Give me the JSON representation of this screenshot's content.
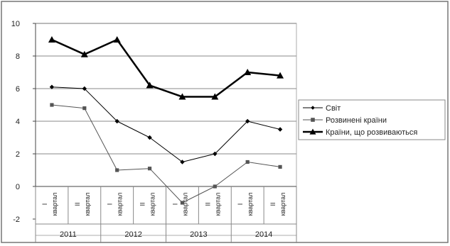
{
  "chart_data": {
    "type": "line",
    "title": "",
    "xlabel": "",
    "ylabel": "",
    "ylim": [
      -3,
      10
    ],
    "yticks": [
      -2,
      0,
      2,
      4,
      6,
      8,
      10
    ],
    "grid": "horizontal",
    "legend_position": "right",
    "x_categories": [
      {
        "roman": "I",
        "quarter": "квартал"
      },
      {
        "roman": "II",
        "quarter": "квартал"
      },
      {
        "roman": "I",
        "quarter": "квартал"
      },
      {
        "roman": "II",
        "quarter": "квартал"
      },
      {
        "roman": "I",
        "quarter": "квартал"
      },
      {
        "roman": "II",
        "quarter": "квартал"
      },
      {
        "roman": "I",
        "quarter": "квартал"
      },
      {
        "roman": "II",
        "quarter": "квартал"
      }
    ],
    "years": [
      "2011",
      "2012",
      "2013",
      "2014"
    ],
    "series": [
      {
        "name": "Світ",
        "marker": "diamond",
        "color": "#000000",
        "width": 1,
        "values": [
          6.1,
          6.0,
          4.0,
          3.0,
          1.5,
          2.0,
          4.0,
          3.5
        ]
      },
      {
        "name": "Розвинені країни",
        "marker": "square",
        "color": "#555555",
        "width": 1,
        "values": [
          5.0,
          4.8,
          1.0,
          1.1,
          -1.0,
          0.0,
          1.5,
          1.2
        ]
      },
      {
        "name": "Країни, що розвиваються",
        "marker": "triangle",
        "color": "#000000",
        "width": 2.5,
        "values": [
          9.0,
          8.1,
          9.0,
          6.2,
          5.5,
          5.5,
          7.0,
          6.8
        ]
      }
    ]
  }
}
